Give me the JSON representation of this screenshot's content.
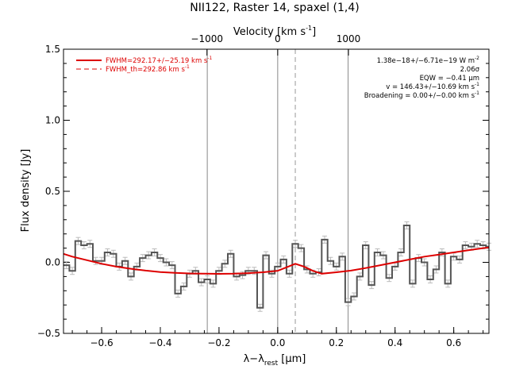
{
  "chart_data": {
    "type": "line",
    "title": "NII122, Raster 14, spaxel (1,4)",
    "xlabel_main": "λ−λ",
    "xlabel_sub": "rest",
    "xlabel_unit": " [μm]",
    "ylabel": "Flux density [Jy]",
    "top_axis_label": "Velocity [km s",
    "top_axis_label_sup": "-1",
    "top_axis_label_end": "]",
    "xlim": [
      -0.73,
      0.72
    ],
    "ylim": [
      -0.5,
      1.5
    ],
    "x_ticks": [
      -0.6,
      -0.4,
      -0.2,
      0.0,
      0.2,
      0.4,
      0.6
    ],
    "x_tick_labels": [
      "−0.6",
      "−0.4",
      "−0.2",
      "0.0",
      "0.2",
      "0.4",
      "0.6"
    ],
    "y_ticks": [
      -0.5,
      0.0,
      0.5,
      1.0,
      1.5
    ],
    "y_tick_labels": [
      "−0.5",
      "0.0",
      "0.5",
      "1.0",
      "1.5"
    ],
    "top_ticks_x": [
      -0.2411,
      0.0,
      0.2411
    ],
    "top_tick_labels": [
      "−1000",
      "0",
      "1000"
    ],
    "vertical_lines_solid": [
      -0.24,
      0.0,
      0.24
    ],
    "vertical_line_dashed": 0.06,
    "legend": [
      {
        "label": "FWHM=292.17+/−25.19 km s",
        "sup": "-1",
        "style": "solid",
        "color": "#dd0000"
      },
      {
        "label": "FWHM_th=292.86 km s",
        "sup": "-1",
        "style": "dashed",
        "color": "#dd0000"
      }
    ],
    "annotations": [
      {
        "text": "1.38e−18+/−6.71e−19 W m",
        "sup": "-2"
      },
      {
        "text": "2.06σ",
        "sup": ""
      },
      {
        "text": "EQW = −0.41 μm",
        "sup": ""
      },
      {
        "text": "v = 146.43+/−10.69 km s",
        "sup": "-1"
      },
      {
        "text": "Broadening = 0.00+/−0.00 km s",
        "sup": "-1"
      }
    ],
    "spectrum": {
      "name": "",
      "color": "#555555",
      "bin_width": 0.02,
      "x": [
        -0.74,
        -0.72,
        -0.7,
        -0.68,
        -0.66,
        -0.64,
        -0.62,
        -0.6,
        -0.58,
        -0.56,
        -0.54,
        -0.52,
        -0.5,
        -0.48,
        -0.46,
        -0.44,
        -0.42,
        -0.4,
        -0.38,
        -0.36,
        -0.34,
        -0.32,
        -0.3,
        -0.28,
        -0.26,
        -0.24,
        -0.22,
        -0.2,
        -0.18,
        -0.16,
        -0.14,
        -0.12,
        -0.1,
        -0.08,
        -0.06,
        -0.04,
        -0.02,
        0.0,
        0.02,
        0.04,
        0.06,
        0.08,
        0.1,
        0.12,
        0.14,
        0.16,
        0.18,
        0.2,
        0.22,
        0.24,
        0.26,
        0.28,
        0.3,
        0.32,
        0.34,
        0.36,
        0.38,
        0.4,
        0.42,
        0.44,
        0.46,
        0.48,
        0.5,
        0.52,
        0.54,
        0.56,
        0.58,
        0.6,
        0.62,
        0.64,
        0.66,
        0.68,
        0.7,
        0.72
      ],
      "y": [
        0.07,
        -0.02,
        -0.06,
        0.15,
        0.12,
        0.13,
        0.01,
        0.01,
        0.07,
        0.06,
        -0.03,
        0.01,
        -0.1,
        -0.03,
        0.03,
        0.05,
        0.07,
        0.03,
        0.0,
        -0.02,
        -0.22,
        -0.17,
        -0.08,
        -0.06,
        -0.14,
        -0.12,
        -0.15,
        -0.06,
        -0.01,
        0.06,
        -0.1,
        -0.09,
        -0.06,
        -0.06,
        -0.32,
        0.05,
        -0.08,
        -0.03,
        0.02,
        -0.08,
        0.13,
        0.1,
        -0.05,
        -0.08,
        -0.07,
        0.16,
        0.01,
        -0.03,
        0.04,
        -0.28,
        -0.24,
        -0.1,
        0.12,
        -0.16,
        0.07,
        0.05,
        -0.11,
        -0.03,
        0.07,
        0.26,
        -0.15,
        0.03,
        0.0,
        -0.12,
        -0.05,
        0.07,
        -0.15,
        0.04,
        0.02,
        0.12,
        0.11,
        0.13,
        0.12,
        0.11
      ],
      "err": 0.025
    },
    "fit": {
      "name": "",
      "color": "#dd0000",
      "x": [
        -0.73,
        -0.7,
        -0.65,
        -0.6,
        -0.55,
        -0.5,
        -0.45,
        -0.4,
        -0.35,
        -0.3,
        -0.25,
        -0.2,
        -0.15,
        -0.1,
        -0.05,
        0.0,
        0.03,
        0.06,
        0.09,
        0.12,
        0.15,
        0.2,
        0.25,
        0.3,
        0.35,
        0.4,
        0.45,
        0.5,
        0.55,
        0.6,
        0.65,
        0.7,
        0.72
      ],
      "y": [
        0.06,
        0.04,
        0.015,
        -0.01,
        -0.03,
        -0.045,
        -0.058,
        -0.068,
        -0.074,
        -0.078,
        -0.08,
        -0.081,
        -0.08,
        -0.076,
        -0.07,
        -0.06,
        -0.035,
        -0.01,
        -0.03,
        -0.06,
        -0.08,
        -0.07,
        -0.058,
        -0.04,
        -0.02,
        0.0,
        0.02,
        0.04,
        0.055,
        0.07,
        0.085,
        0.1,
        0.105
      ]
    }
  }
}
